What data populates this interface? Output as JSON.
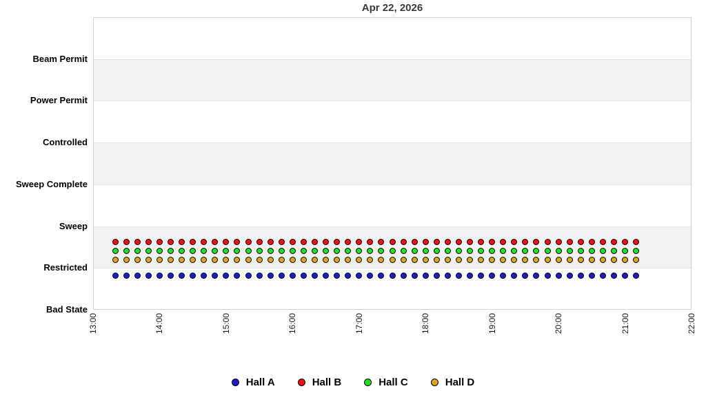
{
  "chart_data": {
    "type": "scatter",
    "title": "Apr 22, 2026",
    "x_axis": {
      "tick_labels": [
        "13:00",
        "14:00",
        "15:00",
        "16:00",
        "17:00",
        "18:00",
        "19:00",
        "20:00",
        "21:00",
        "22:00"
      ],
      "start_hour": 13,
      "end_hour": 22,
      "tick_label_rotation_deg": -90,
      "gridlines": false
    },
    "y_axis": {
      "categories_bottom_to_top": [
        "Bad State",
        "Restricted",
        "Sweep",
        "Sweep Complete",
        "Controlled",
        "Power Permit",
        "Beam Permit"
      ],
      "alternating_bands": true
    },
    "sampling": {
      "first_time": "13:20",
      "last_time": "21:10",
      "step_minutes": 10,
      "num_points": 48
    },
    "series": [
      {
        "name": "Hall A",
        "color": "#1A1ACD",
        "state": "Restricted",
        "y_value_units": 0.81
      },
      {
        "name": "Hall B",
        "color": "#EE1111",
        "state": "Restricted",
        "y_value_units": 1.62
      },
      {
        "name": "Hall C",
        "color": "#22DD22",
        "state": "Restricted",
        "y_value_units": 1.41
      },
      {
        "name": "Hall D",
        "color": "#DAA520",
        "state": "Restricted",
        "y_value_units": 1.19
      }
    ],
    "legend": {
      "position": "bottom-center",
      "items": [
        "Hall A",
        "Hall B",
        "Hall C",
        "Hall D"
      ]
    },
    "style": {
      "band_gray": "#F2F2F2",
      "band_white": "#FFFFFF",
      "frame_border": "#D4D4D4",
      "gridline": "#E4E4E4",
      "title_color": "#3A3A3A",
      "marker_outline": "#000000"
    }
  }
}
